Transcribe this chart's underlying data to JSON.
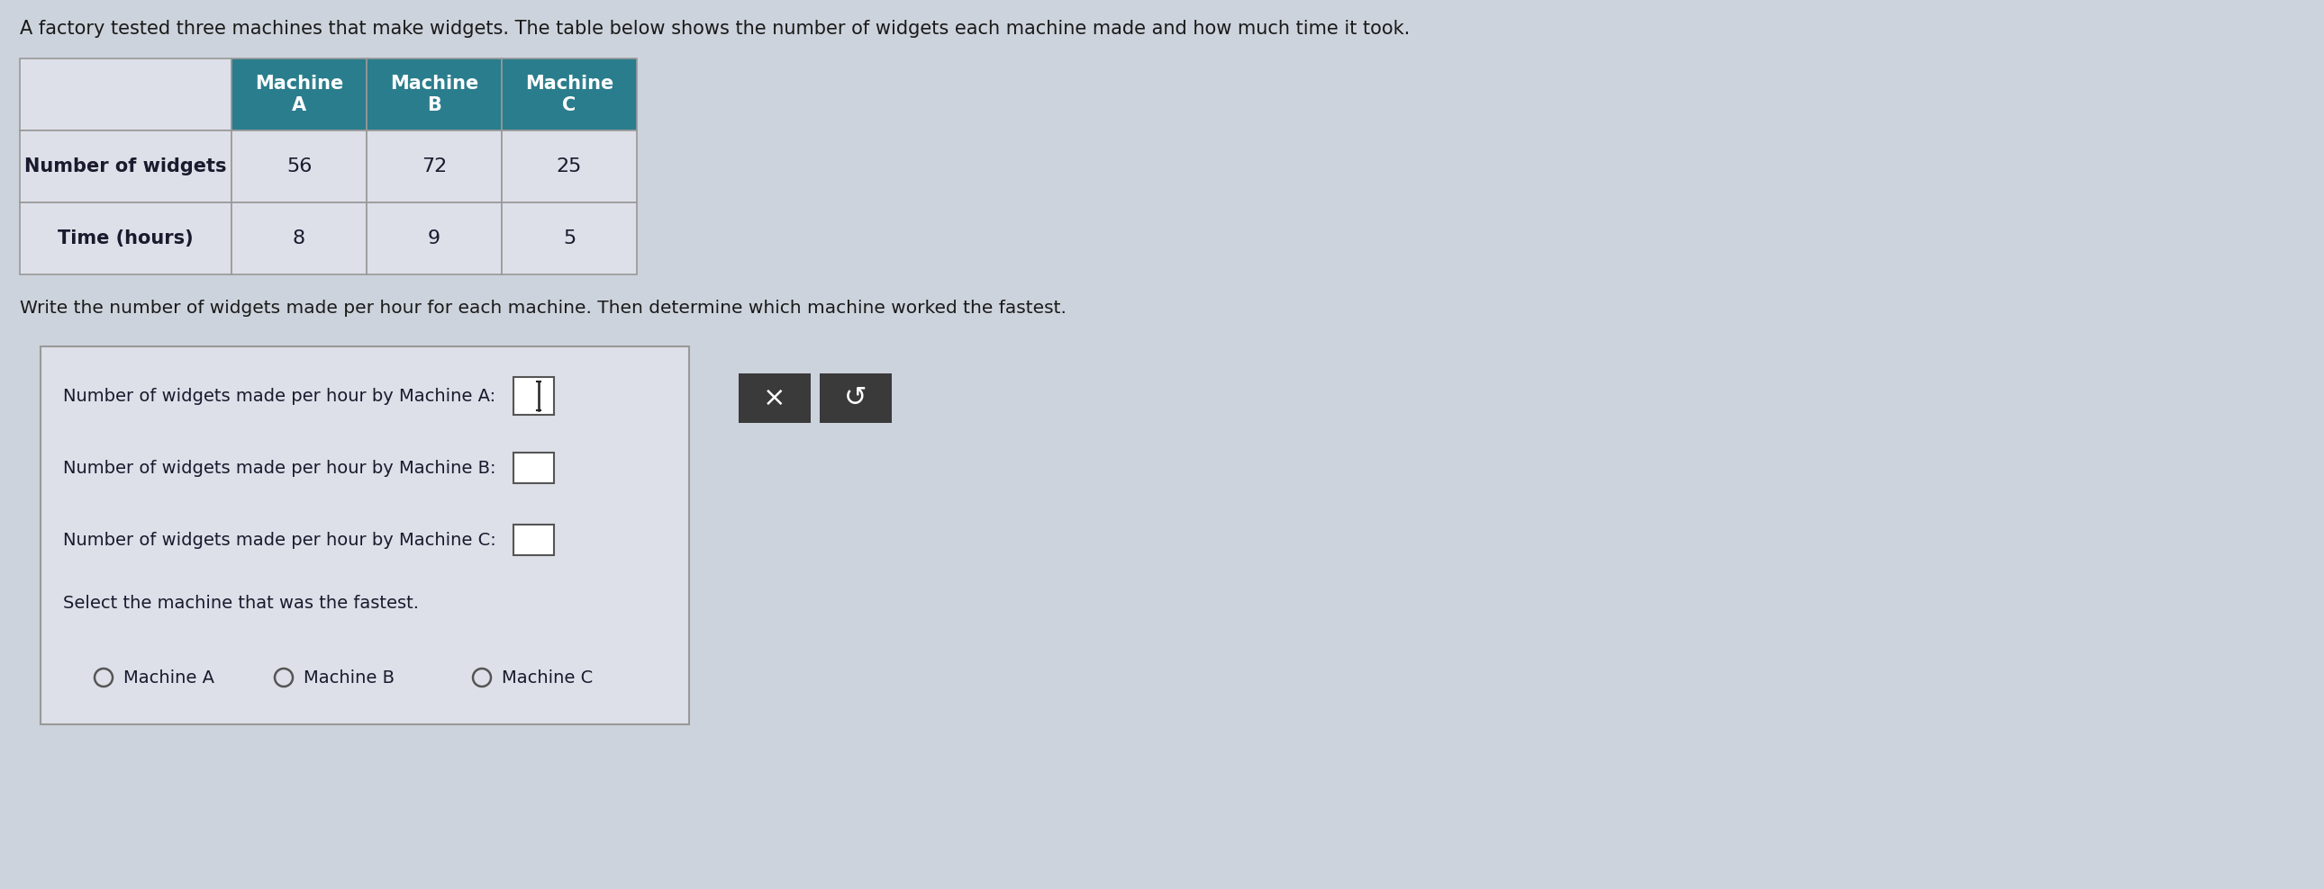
{
  "bg_color": "#cdd3dc",
  "title_text": "A factory tested three machines that make widgets. The table below shows the number of widgets each machine made and how much time it took.",
  "table_header_bg": "#2a7d8c",
  "table_header_text_color": "#ffffff",
  "table_row_bg": "#dde0e8",
  "table_border_color": "#999999",
  "table_col_headers": [
    "Machine\nA",
    "Machine\nB",
    "Machine\nC"
  ],
  "table_row_labels": [
    "Number of widgets",
    "Time (hours)"
  ],
  "table_data": [
    [
      56,
      72,
      25
    ],
    [
      8,
      9,
      5
    ]
  ],
  "instruction_text": "Write the number of widgets made per hour for each machine. Then determine which machine worked the fastest.",
  "line_a_text": "Number of widgets made per hour by Machine A:",
  "line_b_text": "Number of widgets made per hour by Machine B:",
  "line_c_text": "Number of widgets made per hour by Machine C:",
  "select_text": "Select the machine that was the fastest.",
  "radio_labels": [
    "Machine A",
    "Machine B",
    "Machine C"
  ],
  "button_bg": "#3a3a3a",
  "button_text_x": "×",
  "button_text_undo": "↺",
  "input_box_color": "#ffffff",
  "input_box_border": "#555555",
  "answer_box_bg": "#dde0e8",
  "answer_box_border": "#999999"
}
